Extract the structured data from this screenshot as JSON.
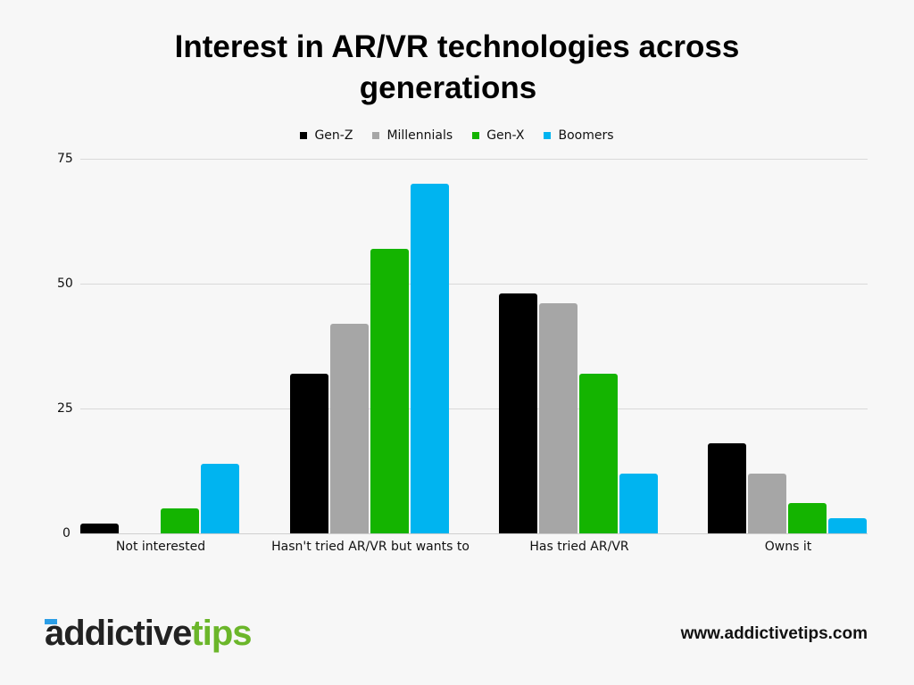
{
  "title_line1": "Interest in AR/VR technologies across",
  "title_line2": "generations",
  "legend": [
    {
      "label": "Gen-Z",
      "color": "#000000"
    },
    {
      "label": "Millennials",
      "color": "#a6a6a6"
    },
    {
      "label": "Gen-X",
      "color": "#14b400"
    },
    {
      "label": "Boomers",
      "color": "#00b4f0"
    }
  ],
  "y_ticks": [
    "75",
    "50",
    "25",
    "0"
  ],
  "x_labels": [
    "Not interested",
    "Hasn't tried AR/VR but wants to",
    "Has tried AR/VR",
    "Owns it"
  ],
  "footer": {
    "logo_dark": "addictive",
    "logo_green": "tips",
    "url": "www.addictivetips.com"
  },
  "chart_data": {
    "type": "bar",
    "title": "Interest in AR/VR technologies across generations",
    "categories": [
      "Not interested",
      "Hasn't tried AR/VR but wants to",
      "Has tried AR/VR",
      "Owns it"
    ],
    "series": [
      {
        "name": "Gen-Z",
        "color": "#000000",
        "values": [
          2,
          32,
          48,
          18
        ]
      },
      {
        "name": "Millennials",
        "color": "#a6a6a6",
        "values": [
          0,
          42,
          46,
          12
        ]
      },
      {
        "name": "Gen-X",
        "color": "#14b400",
        "values": [
          5,
          57,
          32,
          6
        ]
      },
      {
        "name": "Boomers",
        "color": "#00b4f0",
        "values": [
          14,
          70,
          12,
          3
        ]
      }
    ],
    "xlabel": "",
    "ylabel": "",
    "ylim": [
      0,
      75
    ],
    "yticks": [
      0,
      25,
      50,
      75
    ],
    "grid": true,
    "legend_position": "top"
  }
}
